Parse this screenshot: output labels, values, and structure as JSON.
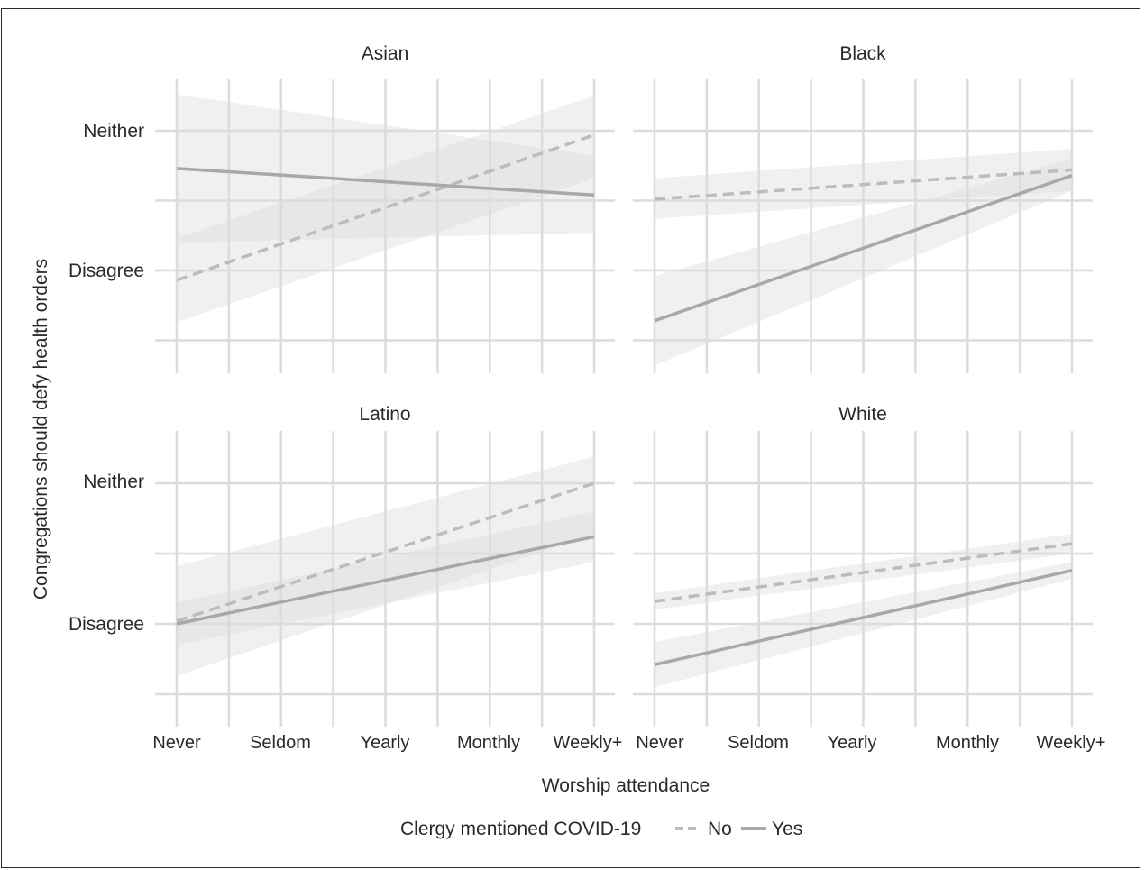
{
  "chart_data": {
    "type": "line",
    "ylabel": "Congregations should defy health orders",
    "xlabel": "Worship attendance",
    "x_ticks": [
      "Never",
      "Seldom",
      "Yearly",
      "Monthly",
      "Weekly+"
    ],
    "y_ticks": [
      "Disagree",
      "Neither"
    ],
    "ylim": [
      1.35,
      3.35
    ],
    "y_tick_values": [
      2,
      3
    ],
    "grid": true,
    "legend": {
      "title": "Clergy mentioned COVID-19",
      "position": "bottom",
      "entries": [
        {
          "label": "No",
          "style": "dashed"
        },
        {
          "label": "Yes",
          "style": "solid"
        }
      ]
    },
    "colors": {
      "no_line": "#bcbcbc",
      "yes_line": "#a8a8a8",
      "band": "#dcdcdc",
      "grid": "#dcdcdc",
      "text": "#2a2a2a"
    },
    "panels": [
      {
        "title": "Asian",
        "series": [
          {
            "name": "No",
            "x": [
              0,
              4
            ],
            "y": [
              1.93,
              2.97
            ],
            "lower": [
              1.63,
              2.66
            ],
            "upper": [
              2.23,
              3.25
            ]
          },
          {
            "name": "Yes",
            "x": [
              0,
              4
            ],
            "y": [
              2.73,
              2.54
            ],
            "lower": [
              2.2,
              2.27
            ],
            "upper": [
              3.26,
              2.82
            ]
          }
        ]
      },
      {
        "title": "Black",
        "series": [
          {
            "name": "No",
            "x": [
              0,
              4
            ],
            "y": [
              2.51,
              2.72
            ],
            "lower": [
              2.37,
              2.57
            ],
            "upper": [
              2.66,
              2.87
            ]
          },
          {
            "name": "Yes",
            "x": [
              0,
              4
            ],
            "y": [
              1.64,
              2.68
            ],
            "lower": [
              1.32,
              2.57
            ],
            "upper": [
              1.96,
              2.8
            ]
          }
        ]
      },
      {
        "title": "Latino",
        "series": [
          {
            "name": "No",
            "x": [
              0,
              4
            ],
            "y": [
              2.02,
              3.0
            ],
            "lower": [
              1.63,
              2.64
            ],
            "upper": [
              2.41,
              3.19
            ]
          },
          {
            "name": "Yes",
            "x": [
              0,
              4
            ],
            "y": [
              2.0,
              2.62
            ],
            "lower": [
              1.85,
              2.44
            ],
            "upper": [
              2.15,
              2.8
            ]
          }
        ]
      },
      {
        "title": "White",
        "series": [
          {
            "name": "No",
            "x": [
              0,
              4
            ],
            "y": [
              2.16,
              2.57
            ],
            "lower": [
              2.1,
              2.5
            ],
            "upper": [
              2.22,
              2.64
            ]
          },
          {
            "name": "Yes",
            "x": [
              0,
              4
            ],
            "y": [
              1.71,
              2.38
            ],
            "lower": [
              1.55,
              2.32
            ],
            "upper": [
              1.87,
              2.44
            ]
          }
        ]
      }
    ]
  }
}
